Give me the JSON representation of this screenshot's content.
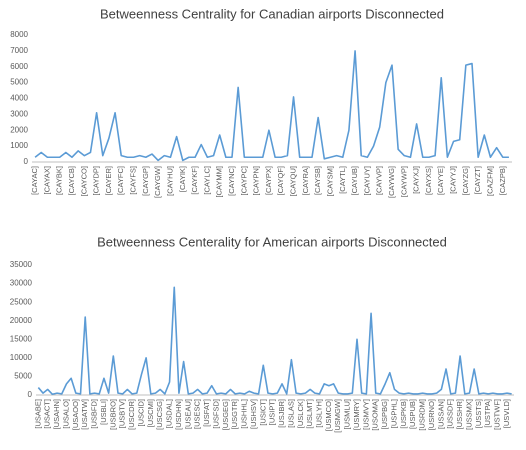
{
  "chart_data": [
    {
      "type": "line",
      "title": "Betweenness Centrality for Canadian airports Disconnected",
      "categories": [
        "[CAYAC]",
        null,
        "[CAYAX]",
        null,
        "[CAYBK]",
        null,
        "[CAYCB]",
        null,
        "[CAYCO]",
        null,
        "[CAYDP]",
        null,
        "[CAYER]",
        null,
        "[CAYFC]",
        null,
        "[CAYFS]",
        null,
        "[CAYGP]",
        null,
        "[CAYGW]",
        null,
        "[CAYHU]",
        null,
        "[CAYIK]",
        null,
        "[CAYKF]",
        null,
        "[CAYLC]",
        null,
        "[CAYMM]",
        null,
        "[CAYNC]",
        null,
        "[CAYPC]",
        null,
        "[CAYPN]",
        null,
        "[CAYPX]",
        null,
        "[CAYQF]",
        null,
        "[CAYQU]",
        null,
        "[CAYRA]",
        null,
        "[CAYSB]",
        null,
        "[CAYSM]",
        null,
        "[CAYTL]",
        null,
        "[CAYUB]",
        null,
        "[CAYUY]",
        null,
        "[CAYVP]",
        null,
        "[CAYWG]",
        null,
        "[CAYWP]",
        null,
        "[CAYXJ]",
        null,
        "[CAYXS]",
        null,
        "[CAYYE]",
        null,
        "[CAYYJ]",
        null,
        "[CAYZG]",
        null,
        "[CAYZT]",
        null,
        "[CAZFM]",
        null,
        "[CAZPB]",
        null
      ],
      "series": [
        {
          "name": "Betweenness",
          "color": "#5b9bd5",
          "values": [
            300,
            600,
            300,
            300,
            300,
            600,
            300,
            700,
            400,
            600,
            3100,
            400,
            1500,
            3100,
            400,
            300,
            300,
            400,
            300,
            500,
            100,
            400,
            300,
            1600,
            100,
            300,
            300,
            1100,
            300,
            400,
            1700,
            300,
            300,
            4700,
            300,
            300,
            300,
            300,
            2000,
            300,
            300,
            400,
            4100,
            300,
            300,
            300,
            2800,
            200,
            300,
            400,
            300,
            2000,
            7000,
            400,
            300,
            1000,
            2200,
            5000,
            6100,
            800,
            400,
            300,
            2400,
            300,
            300,
            400,
            5300,
            300,
            1300,
            1400,
            6100,
            6200,
            300,
            1700,
            300,
            900,
            300,
            300
          ]
        }
      ],
      "ylim": [
        0,
        8000
      ],
      "yticks": [
        0,
        1000,
        2000,
        3000,
        4000,
        5000,
        6000,
        7000,
        8000
      ]
    },
    {
      "type": "line",
      "title": "Betweenness Centerality for American airports Disconnected",
      "categories": [
        "[USABE]",
        null,
        "[USACT]",
        null,
        "[USAHN]",
        null,
        "[USALO]",
        null,
        "[USAOO]",
        null,
        "[USATW]",
        null,
        "[USBFD]",
        null,
        "[USBLI]",
        null,
        "[USBRO]",
        null,
        "[USBTV]",
        null,
        "[USCDR]",
        null,
        "[USCID]",
        null,
        "[USCMI]",
        null,
        "[USCSG]",
        null,
        "[USDAL]",
        null,
        "[USDHN]",
        null,
        "[USEAU]",
        null,
        "[USESC]",
        null,
        "[USFAT]",
        null,
        "[USFSD]",
        null,
        "[USGEG]",
        null,
        "[USGTR]",
        null,
        "[USHHL]",
        null,
        "[USHSV]",
        null,
        "[USICT]",
        null,
        "[USIPT]",
        null,
        "[USJBR]",
        null,
        "[USLAS]",
        null,
        "[USLCK]",
        null,
        "[USLMT]",
        null,
        "[USLYH]",
        null,
        "[USMCO]",
        null,
        "[USMGW]",
        null,
        "[USMLU]",
        null,
        "[USMRY]",
        null,
        "[USMVY]",
        null,
        "[USOMA]",
        null,
        "[USPBG]",
        null,
        "[USPHL]",
        null,
        "[USPKB]",
        null,
        "[USPUB]",
        null,
        "[USRDM]",
        null,
        "[USRNO]",
        null,
        "[USSAN]",
        null,
        "[USSDF]",
        null,
        "[USSHR]",
        null,
        "[USSMX]",
        null,
        "[USSTS]",
        null,
        "[USTPA]",
        null,
        "[USTWF]",
        null,
        "[USVLD]",
        null
      ],
      "series": [
        {
          "name": "Betweenness",
          "color": "#5b9bd5",
          "values": [
            2000,
            500,
            1500,
            200,
            500,
            300,
            3000,
            4500,
            500,
            300,
            21000,
            300,
            500,
            300,
            4500,
            500,
            10500,
            500,
            300,
            1500,
            300,
            500,
            5500,
            10000,
            300,
            500,
            1500,
            300,
            3500,
            29000,
            500,
            9000,
            300,
            500,
            1500,
            300,
            500,
            2500,
            300,
            500,
            300,
            1500,
            300,
            500,
            300,
            1000,
            500,
            300,
            8000,
            500,
            300,
            500,
            3000,
            300,
            9500,
            500,
            300,
            500,
            1500,
            500,
            300,
            3000,
            2500,
            3000,
            500,
            300,
            300,
            500,
            15000,
            500,
            300,
            22000,
            500,
            300,
            3000,
            6000,
            1500,
            500,
            300,
            500,
            300,
            300,
            500,
            300,
            300,
            500,
            1500,
            7000,
            300,
            500,
            10500,
            300,
            500,
            7000,
            300,
            500,
            300,
            500,
            300,
            300,
            500,
            300
          ]
        }
      ],
      "ylim": [
        0,
        35000
      ],
      "yticks": [
        0,
        5000,
        10000,
        15000,
        20000,
        25000,
        30000,
        35000
      ]
    }
  ]
}
